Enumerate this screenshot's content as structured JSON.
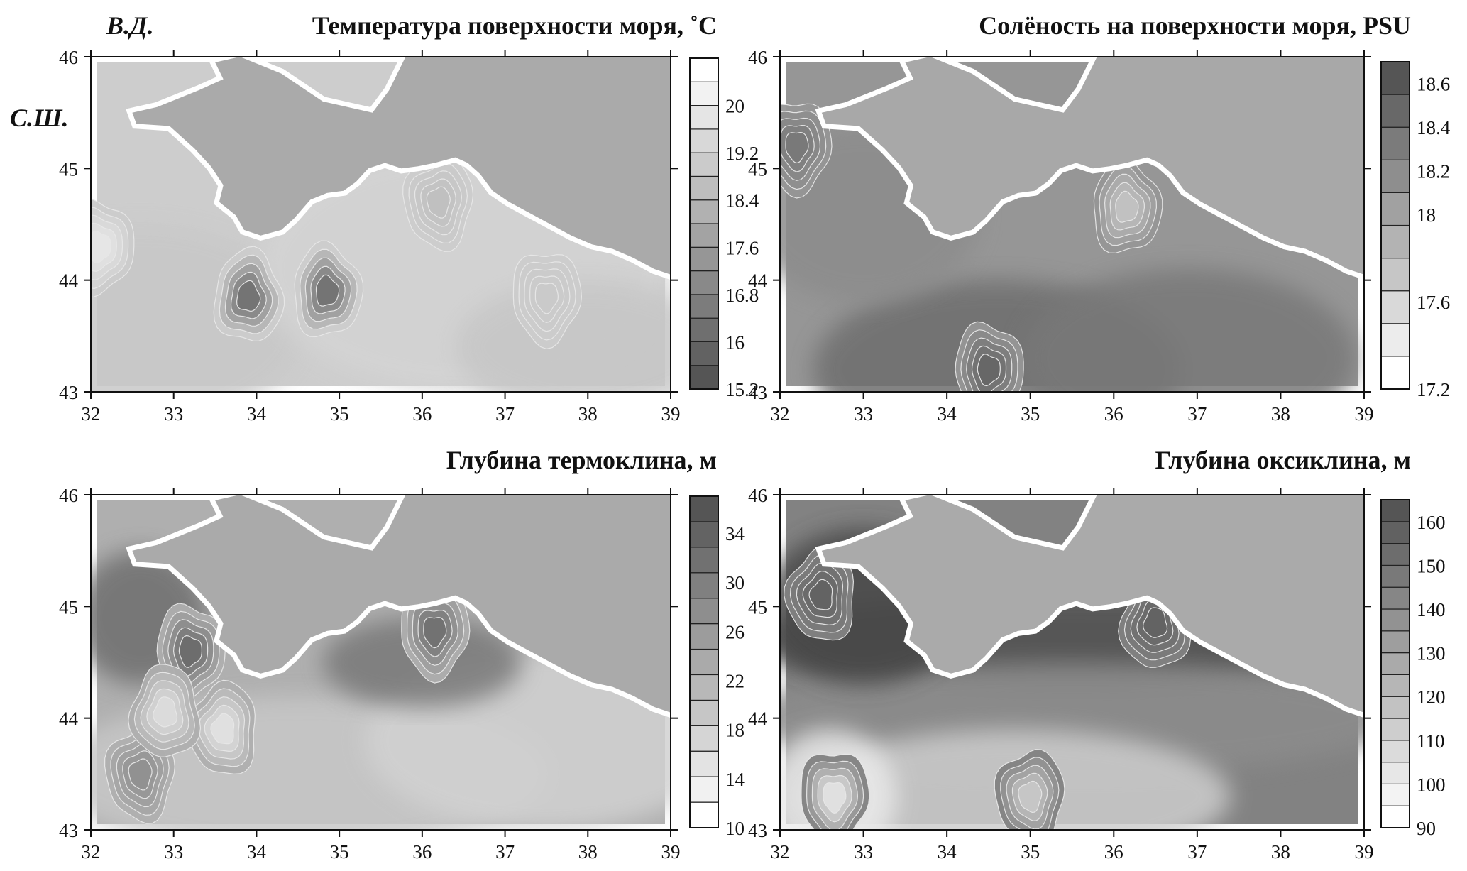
{
  "figure": {
    "lon_label": "В.Д.",
    "lat_label": "С.Ш."
  },
  "chart_data": [
    {
      "type": "heatmap",
      "title": "Температура поверхности моря, ˚C",
      "xlim": [
        32,
        39
      ],
      "ylim": [
        43,
        46
      ],
      "xticks": [
        "32",
        "33",
        "34",
        "35",
        "36",
        "37",
        "38",
        "39"
      ],
      "yticks": [
        "43",
        "44",
        "45",
        "46"
      ],
      "colorbar": {
        "labels": [
          "20",
          "19.2",
          "18.4",
          "17.6",
          "16.8",
          "16",
          "15.2"
        ],
        "range": [
          15.2,
          20.8
        ],
        "levels": 14,
        "shading": "gray, low values dark, high values light"
      },
      "features": [
        {
          "label": "",
          "lon": 33.9,
          "lat": 43.85,
          "value": 15.6
        },
        {
          "label": "",
          "lon": 34.85,
          "lat": 43.9,
          "value": 15.6
        },
        {
          "label": "",
          "lon": 32.1,
          "lat": 44.3,
          "value": 20.4
        },
        {
          "label": "",
          "lon": 37.5,
          "lat": 43.85,
          "value": 19.2
        },
        {
          "label": "",
          "lon": 36.2,
          "lat": 44.7,
          "value": 18.8
        }
      ]
    },
    {
      "type": "heatmap",
      "title": "Солёность на поверхности моря, PSU",
      "xlim": [
        32,
        39
      ],
      "ylim": [
        43,
        46
      ],
      "xticks": [
        "32",
        "33",
        "34",
        "35",
        "36",
        "37",
        "38",
        "39"
      ],
      "yticks": [
        "43",
        "44",
        "45",
        "46"
      ],
      "colorbar": {
        "labels": [
          "18.6",
          "18.4",
          "18.2",
          "18",
          "17.6",
          "17.2"
        ],
        "range": [
          17.2,
          18.7
        ],
        "levels": 10,
        "shading": "gray, high values dark, low values light"
      },
      "features": [
        {
          "label": "",
          "lon": 36.15,
          "lat": 44.65,
          "value": 17.6
        },
        {
          "label": "",
          "lon": 34.5,
          "lat": 43.2,
          "value": 18.6
        },
        {
          "label": "",
          "lon": 32.2,
          "lat": 45.2,
          "value": 18.4
        }
      ]
    },
    {
      "type": "heatmap",
      "title": "Глубина термоклина, м",
      "xlim": [
        32,
        39
      ],
      "ylim": [
        43,
        46
      ],
      "xticks": [
        "32",
        "33",
        "34",
        "35",
        "36",
        "37",
        "38",
        "39"
      ],
      "yticks": [
        "43",
        "44",
        "45",
        "46"
      ],
      "colorbar": {
        "labels": [
          "34",
          "30",
          "26",
          "22",
          "18",
          "14",
          "10"
        ],
        "range": [
          10,
          37
        ],
        "levels": 13,
        "shading": "gray, deep values dark, shallow values light"
      },
      "features": [
        {
          "label": "",
          "lon": 33.2,
          "lat": 44.6,
          "value": 35
        },
        {
          "label": "",
          "lon": 36.15,
          "lat": 44.78,
          "value": 34
        },
        {
          "label": "",
          "lon": 32.6,
          "lat": 43.5,
          "value": 28
        },
        {
          "label": "",
          "lon": 33.6,
          "lat": 43.9,
          "value": 12
        },
        {
          "label": "",
          "lon": 32.9,
          "lat": 44.05,
          "value": 13
        }
      ]
    },
    {
      "type": "heatmap",
      "title": "Глубина оксиклина, м",
      "xlim": [
        32,
        39
      ],
      "ylim": [
        43,
        46
      ],
      "xticks": [
        "32",
        "33",
        "34",
        "35",
        "36",
        "37",
        "38",
        "39"
      ],
      "yticks": [
        "43",
        "44",
        "45",
        "46"
      ],
      "colorbar": {
        "labels": [
          "160",
          "150",
          "140",
          "130",
          "120",
          "110",
          "100",
          "90"
        ],
        "range": [
          90,
          165
        ],
        "levels": 15,
        "shading": "gray, deep values dark, shallow values light"
      },
      "features": [
        {
          "label": "",
          "lon": 32.65,
          "lat": 43.3,
          "value": 90
        },
        {
          "label": "",
          "lon": 35.0,
          "lat": 43.3,
          "value": 105
        },
        {
          "label": "",
          "lon": 32.5,
          "lat": 45.1,
          "value": 160
        },
        {
          "label": "",
          "lon": 36.5,
          "lat": 44.85,
          "value": 160
        }
      ]
    }
  ]
}
